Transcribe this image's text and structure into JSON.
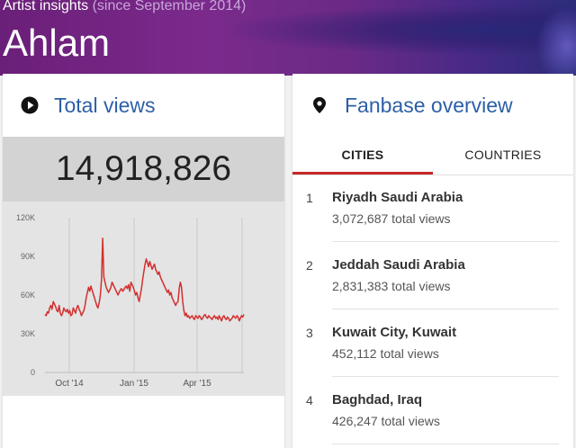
{
  "header": {
    "subtitle": "Artist insights",
    "subtitle_paren": "(since September 2014)",
    "artist": "Ahlam"
  },
  "total_views": {
    "heading": "Total views",
    "icon": "play-circle-icon",
    "value": "14,918,826"
  },
  "chart_data": {
    "type": "line",
    "title": "",
    "xlabel": "",
    "ylabel": "",
    "y_ticks": [
      "0",
      "30K",
      "60K",
      "90K",
      "120K"
    ],
    "x_ticks": [
      "Oct '14",
      "Jan '15",
      "Apr '15"
    ],
    "ylim": [
      0,
      120000
    ],
    "color": "#d32f2f",
    "grid": "vertical",
    "values": [
      45000,
      44000,
      47000,
      46000,
      50000,
      52000,
      49000,
      55000,
      53000,
      51000,
      48000,
      47000,
      52000,
      46000,
      44000,
      46000,
      50000,
      48000,
      47000,
      49000,
      46000,
      48000,
      44000,
      45000,
      50000,
      48000,
      46000,
      50000,
      52000,
      49000,
      47000,
      44000,
      46000,
      48000,
      52000,
      58000,
      62000,
      66000,
      63000,
      67000,
      64000,
      61000,
      58000,
      55000,
      52000,
      50000,
      54000,
      60000,
      72000,
      104000,
      74000,
      70000,
      66000,
      64000,
      62000,
      64000,
      66000,
      70000,
      68000,
      66000,
      64000,
      62000,
      60000,
      62000,
      64000,
      65000,
      63000,
      64000,
      66000,
      67000,
      65000,
      68000,
      63000,
      70000,
      68000,
      66000,
      63000,
      60000,
      62000,
      58000,
      55000,
      60000,
      65000,
      72000,
      78000,
      84000,
      88000,
      85000,
      82000,
      86000,
      83000,
      80000,
      82000,
      84000,
      80000,
      78000,
      76000,
      78000,
      74000,
      72000,
      70000,
      68000,
      66000,
      64000,
      62000,
      64000,
      60000,
      62000,
      58000,
      56000,
      54000,
      52000,
      54000,
      55000,
      65000,
      70000,
      66000,
      55000,
      48000,
      44000,
      46000,
      43000,
      44000,
      42000,
      43000,
      44000,
      42000,
      41000,
      44000,
      43000,
      42000,
      44000,
      43000,
      41000,
      42000,
      44000,
      45000,
      43000,
      42000,
      44000,
      43000,
      42000,
      41000,
      43000,
      44000,
      42000,
      43000,
      41000,
      44000,
      42000,
      40000,
      43000,
      44000,
      42000,
      41000,
      43000,
      42000,
      40000,
      41000,
      42000,
      44000,
      43000,
      42000,
      44000,
      43000,
      40000,
      42000,
      44000,
      43000,
      45000
    ]
  },
  "fanbase": {
    "heading": "Fanbase overview",
    "icon": "location-pin-icon",
    "tabs": [
      "CITIES",
      "COUNTRIES"
    ],
    "accent": "#c62828",
    "items": [
      {
        "rank": "1",
        "name": "Riyadh Saudi Arabia",
        "views": "3,072,687 total views"
      },
      {
        "rank": "2",
        "name": "Jeddah Saudi Arabia",
        "views": "2,831,383 total views"
      },
      {
        "rank": "3",
        "name": "Kuwait City, Kuwait",
        "views": "452,112 total views"
      },
      {
        "rank": "4",
        "name": "Baghdad, Iraq",
        "views": "426,247 total views"
      }
    ]
  }
}
